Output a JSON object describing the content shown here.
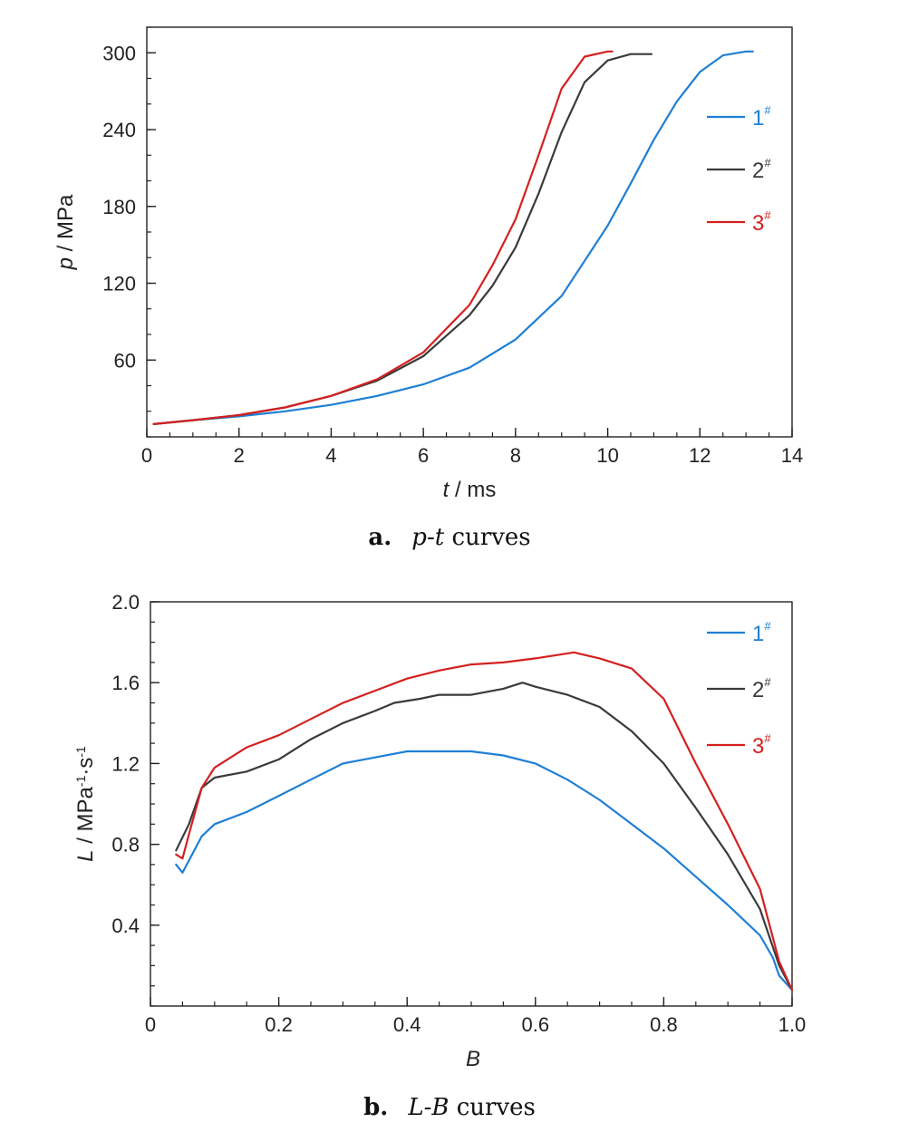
{
  "chart_data": [
    {
      "type": "line",
      "xlabel_var": "t",
      "xlabel_unit": " / ms",
      "ylabel_var": "p",
      "ylabel_unit": " / MPa",
      "xlim": [
        0,
        14
      ],
      "ylim": [
        0,
        320
      ],
      "xticks": [
        "0",
        "2",
        "4",
        "6",
        "8",
        "10",
        "12",
        "14"
      ],
      "yticks": [
        "60",
        "120",
        "180",
        "240",
        "300"
      ],
      "caption_letter": "a.",
      "caption_var": "p-t",
      "caption_text": " curves",
      "legend_position": "top-right",
      "series": [
        {
          "name": "1",
          "superscript": "#",
          "color": "#1f7fd4",
          "points": [
            [
              0.15,
              10
            ],
            [
              1,
              13
            ],
            [
              2,
              16
            ],
            [
              3,
              20
            ],
            [
              4,
              25
            ],
            [
              5,
              32
            ],
            [
              6,
              41
            ],
            [
              7,
              54
            ],
            [
              8,
              76
            ],
            [
              9,
              110
            ],
            [
              10,
              165
            ],
            [
              10.5,
              198
            ],
            [
              11,
              232
            ],
            [
              11.5,
              262
            ],
            [
              12,
              285
            ],
            [
              12.5,
              298
            ],
            [
              13,
              301
            ],
            [
              13.15,
              301
            ]
          ]
        },
        {
          "name": "2",
          "superscript": "#",
          "color": "#3a3a3a",
          "points": [
            [
              0.15,
              10
            ],
            [
              1,
              13
            ],
            [
              2,
              17
            ],
            [
              3,
              23
            ],
            [
              4,
              32
            ],
            [
              5,
              44
            ],
            [
              6,
              63
            ],
            [
              7,
              95
            ],
            [
              7.5,
              118
            ],
            [
              8,
              148
            ],
            [
              8.5,
              190
            ],
            [
              9,
              238
            ],
            [
              9.5,
              277
            ],
            [
              10,
              294
            ],
            [
              10.5,
              299
            ],
            [
              10.95,
              299
            ]
          ]
        },
        {
          "name": "3",
          "superscript": "#",
          "color": "#d42020",
          "points": [
            [
              0.15,
              10
            ],
            [
              1,
              13
            ],
            [
              2,
              17
            ],
            [
              3,
              23
            ],
            [
              4,
              32
            ],
            [
              5,
              45
            ],
            [
              6,
              66
            ],
            [
              7,
              103
            ],
            [
              7.5,
              134
            ],
            [
              8,
              170
            ],
            [
              8.5,
              220
            ],
            [
              9,
              272
            ],
            [
              9.5,
              297
            ],
            [
              10,
              301
            ],
            [
              10.1,
              301
            ]
          ]
        }
      ]
    },
    {
      "type": "line",
      "xlabel_var": "B",
      "xlabel_unit": "",
      "ylabel_var": "L",
      "ylabel_unit": " / MPa",
      "ylabel_sup1": "-1",
      "ylabel_mid": "·s",
      "ylabel_sup2": "-1",
      "xlim": [
        0,
        1.0
      ],
      "ylim": [
        0,
        2.0
      ],
      "xticks": [
        "0",
        "0.2",
        "0.4",
        "0.6",
        "0.8",
        "1.0"
      ],
      "yticks": [
        "0.4",
        "0.8",
        "1.2",
        "1.6",
        "2.0"
      ],
      "caption_letter": "b.",
      "caption_var": "L-B",
      "caption_text": " curves",
      "legend_position": "top-right",
      "series": [
        {
          "name": "1",
          "superscript": "#",
          "color": "#1f7fd4",
          "points": [
            [
              0.04,
              0.7
            ],
            [
              0.05,
              0.66
            ],
            [
              0.06,
              0.72
            ],
            [
              0.08,
              0.84
            ],
            [
              0.1,
              0.9
            ],
            [
              0.15,
              0.96
            ],
            [
              0.2,
              1.04
            ],
            [
              0.25,
              1.12
            ],
            [
              0.3,
              1.2
            ],
            [
              0.35,
              1.23
            ],
            [
              0.4,
              1.26
            ],
            [
              0.5,
              1.26
            ],
            [
              0.55,
              1.24
            ],
            [
              0.6,
              1.2
            ],
            [
              0.65,
              1.12
            ],
            [
              0.7,
              1.02
            ],
            [
              0.75,
              0.9
            ],
            [
              0.8,
              0.78
            ],
            [
              0.85,
              0.64
            ],
            [
              0.9,
              0.5
            ],
            [
              0.95,
              0.35
            ],
            [
              0.97,
              0.24
            ],
            [
              0.98,
              0.15
            ],
            [
              1.0,
              0.08
            ]
          ]
        },
        {
          "name": "2",
          "superscript": "#",
          "color": "#3a3a3a",
          "points": [
            [
              0.04,
              0.77
            ],
            [
              0.06,
              0.9
            ],
            [
              0.08,
              1.08
            ],
            [
              0.1,
              1.13
            ],
            [
              0.15,
              1.16
            ],
            [
              0.2,
              1.22
            ],
            [
              0.25,
              1.32
            ],
            [
              0.3,
              1.4
            ],
            [
              0.35,
              1.46
            ],
            [
              0.38,
              1.5
            ],
            [
              0.42,
              1.52
            ],
            [
              0.45,
              1.54
            ],
            [
              0.5,
              1.54
            ],
            [
              0.55,
              1.57
            ],
            [
              0.58,
              1.6
            ],
            [
              0.6,
              1.58
            ],
            [
              0.65,
              1.54
            ],
            [
              0.7,
              1.48
            ],
            [
              0.75,
              1.36
            ],
            [
              0.8,
              1.2
            ],
            [
              0.85,
              0.98
            ],
            [
              0.9,
              0.75
            ],
            [
              0.95,
              0.48
            ],
            [
              0.98,
              0.2
            ],
            [
              1.0,
              0.08
            ]
          ]
        },
        {
          "name": "3",
          "superscript": "#",
          "color": "#d42020",
          "points": [
            [
              0.04,
              0.75
            ],
            [
              0.05,
              0.73
            ],
            [
              0.06,
              0.85
            ],
            [
              0.08,
              1.08
            ],
            [
              0.1,
              1.18
            ],
            [
              0.15,
              1.28
            ],
            [
              0.2,
              1.34
            ],
            [
              0.25,
              1.42
            ],
            [
              0.3,
              1.5
            ],
            [
              0.35,
              1.56
            ],
            [
              0.4,
              1.62
            ],
            [
              0.45,
              1.66
            ],
            [
              0.5,
              1.69
            ],
            [
              0.55,
              1.7
            ],
            [
              0.6,
              1.72
            ],
            [
              0.66,
              1.75
            ],
            [
              0.7,
              1.72
            ],
            [
              0.75,
              1.67
            ],
            [
              0.8,
              1.52
            ],
            [
              0.85,
              1.2
            ],
            [
              0.9,
              0.9
            ],
            [
              0.95,
              0.58
            ],
            [
              0.98,
              0.22
            ],
            [
              1.0,
              0.08
            ]
          ]
        }
      ]
    }
  ]
}
